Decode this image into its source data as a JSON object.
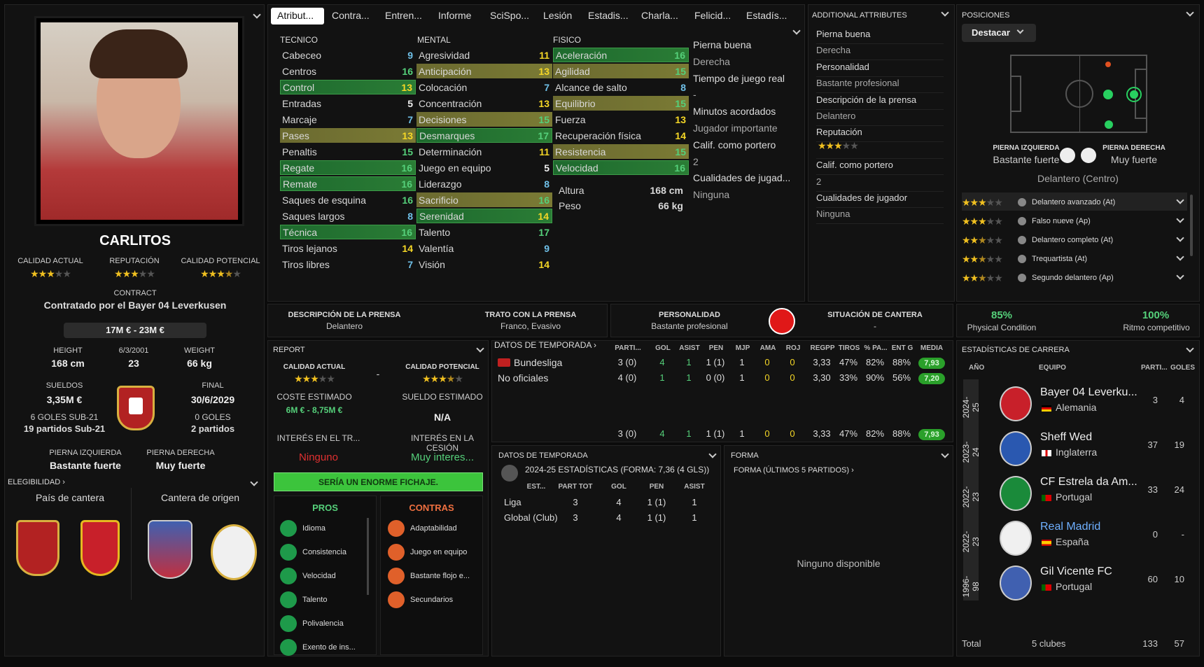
{
  "player": {
    "name": "CARLITOS",
    "current_ability_label": "CALIDAD ACTUAL",
    "reputation_label": "REPUTACIÓN",
    "potential_label": "CALIDAD POTENCIAL",
    "current_stars": 3,
    "reputation_stars": 3,
    "potential_stars": 3.5,
    "contract_label": "CONTRACT",
    "contract_text": "Contratado por el Bayer 04 Leverkusen",
    "value_range": "17M € - 23M €",
    "height_label": "HEIGHT",
    "height": "168 cm",
    "dob": "6/3/2001",
    "age": "23",
    "weight_label": "WEIGHT",
    "weight": "66 kg",
    "wages_label": "SUELDOS",
    "wages": "3,35M €",
    "end_label": "FINAL",
    "end_date": "30/6/2029",
    "u21_goals": "6 GOLES SUB-21",
    "u21_apps": "19 partidos Sub-21",
    "goals": "0 GOLES",
    "apps": "2 partidos",
    "left_foot_label": "PIERNA IZQUIERDA",
    "left_foot": "Bastante fuerte",
    "right_foot_label": "PIERNA DERECHA",
    "right_foot": "Muy fuerte",
    "eligibility_label": "ELEGIBILIDAD",
    "country_label": "País de cantera",
    "origin_label": "Cantera de origen"
  },
  "tabs": [
    "Atribut...",
    "Contra...",
    "Entren...",
    "Informe",
    "SciSpo...",
    "Lesión",
    "Estadis...",
    "Charla...",
    "Felicid...",
    "Estadís..."
  ],
  "attributes": {
    "technical_label": "TECNICO",
    "mental_label": "MENTAL",
    "physical_label": "FISICO",
    "technical": [
      {
        "n": "Cabeceo",
        "v": "9"
      },
      {
        "n": "Centros",
        "v": "16"
      },
      {
        "n": "Control",
        "v": "13"
      },
      {
        "n": "Entradas",
        "v": "5"
      },
      {
        "n": "Marcaje",
        "v": "7"
      },
      {
        "n": "Pases",
        "v": "13"
      },
      {
        "n": "Penaltis",
        "v": "15"
      },
      {
        "n": "Regate",
        "v": "16"
      },
      {
        "n": "Remate",
        "v": "16"
      },
      {
        "n": "Saques de esquina",
        "v": "16"
      },
      {
        "n": "Saques largos",
        "v": "8"
      },
      {
        "n": "Técnica",
        "v": "16"
      },
      {
        "n": "Tiros lejanos",
        "v": "14"
      },
      {
        "n": "Tiros libres",
        "v": "7"
      }
    ],
    "mental": [
      {
        "n": "Agresividad",
        "v": "11"
      },
      {
        "n": "Anticipación",
        "v": "13"
      },
      {
        "n": "Colocación",
        "v": "7"
      },
      {
        "n": "Concentración",
        "v": "13"
      },
      {
        "n": "Decisiones",
        "v": "15"
      },
      {
        "n": "Desmarques",
        "v": "17"
      },
      {
        "n": "Determinación",
        "v": "11"
      },
      {
        "n": "Juego en equipo",
        "v": "5"
      },
      {
        "n": "Liderazgo",
        "v": "8"
      },
      {
        "n": "Sacrificio",
        "v": "16"
      },
      {
        "n": "Serenidad",
        "v": "14"
      },
      {
        "n": "Talento",
        "v": "17"
      },
      {
        "n": "Valentía",
        "v": "9"
      },
      {
        "n": "Visión",
        "v": "14"
      }
    ],
    "physical": [
      {
        "n": "Aceleración",
        "v": "16"
      },
      {
        "n": "Agilidad",
        "v": "15"
      },
      {
        "n": "Alcance de salto",
        "v": "8"
      },
      {
        "n": "Equilibrio",
        "v": "15"
      },
      {
        "n": "Fuerza",
        "v": "13"
      },
      {
        "n": "Recuperación física",
        "v": "14"
      },
      {
        "n": "Resistencia",
        "v": "15"
      },
      {
        "n": "Velocidad",
        "v": "16"
      }
    ],
    "altura_label": "Altura",
    "altura": "168 cm",
    "peso_label": "Peso",
    "peso": "66 kg",
    "side": [
      "Pierna buena",
      "Derecha",
      "Tiempo de juego real",
      "-",
      "Minutos acordados",
      "Jugador importante",
      "Calif. como portero",
      "2",
      "Cualidades de jugad...",
      "Ninguna"
    ]
  },
  "additional": {
    "title": "ADDITIONAL ATTRIBUTES",
    "items": [
      "Pierna buena",
      "Derecha",
      "Personalidad",
      "Bastante profesional",
      "Descripción de la prensa",
      "Delantero",
      "Reputación",
      "",
      "Calif. como portero",
      "2",
      "Cualidades de jugador",
      "Ninguna"
    ]
  },
  "positions": {
    "title": "POSICIONES",
    "dropdown": "Destacar",
    "left_label": "PIERNA IZQUIERDA",
    "left_val": "Bastante fuerte",
    "right_label": "PIERNA DERECHA",
    "right_val": "Muy fuerte",
    "position": "Delantero (Centro)",
    "roles": [
      {
        "stars": 3,
        "n": "Delantero avanzado (At)"
      },
      {
        "stars": 3,
        "n": "Falso nueve (Ap)"
      },
      {
        "stars": 2.5,
        "n": "Delantero completo (At)"
      },
      {
        "stars": 2.5,
        "n": "Trequartista (At)"
      },
      {
        "stars": 2.5,
        "n": "Segundo delantero (Ap)"
      }
    ]
  },
  "press": {
    "desc_label": "DESCRIPCIÓN DE LA PRENSA",
    "desc": "Delantero",
    "trato_label": "TRATO CON LA PRENSA",
    "trato": "Franco, Evasivo",
    "pers_label": "PERSONALIDAD",
    "pers": "Bastante profesional",
    "cantera_label": "SITUACIÓN DE CANTERA",
    "cantera": "-"
  },
  "condition": {
    "phys": "85%",
    "phys_label": "Physical Condition",
    "ritmo": "100%",
    "ritmo_label": "Ritmo competitivo"
  },
  "report": {
    "title": "REPORT",
    "ca_label": "CALIDAD ACTUAL",
    "pa_label": "CALIDAD POTENCIAL",
    "dash": "-",
    "cost_label": "COSTE ESTIMADO",
    "cost": "6M € - 8,75M €",
    "wage_label": "SUELDO ESTIMADO",
    "wage": "N/A",
    "int_tr_label": "INTERÉS EN EL TR...",
    "int_tr": "Ninguno",
    "int_loan_label": "INTERÉS EN LA CESIÓN",
    "int_loan": "Muy interes...",
    "verdict": "SERÍA UN ENORME FICHAJE.",
    "pros_label": "PROS",
    "contras_label": "CONTRAS",
    "pros": [
      "Idioma",
      "Consistencia",
      "Velocidad",
      "Talento",
      "Polivalencia",
      "Exento de ins..."
    ],
    "contras": [
      "Adaptabilidad",
      "Juego en equipo",
      "Bastante flojo e...",
      "Secundarios"
    ]
  },
  "season": {
    "title": "DATOS DE TEMPORADA",
    "headers": [
      "PARTI...",
      "GOL",
      "ASIST",
      "PEN",
      "MJP",
      "AMA",
      "ROJ",
      "REGPP",
      "TIROS",
      "% PA...",
      "ENT G",
      "MEDIA"
    ],
    "rows": [
      {
        "comp": "Bundesliga",
        "vals": [
          "3 (0)",
          "4",
          "1",
          "1 (1)",
          "1",
          "0",
          "0",
          "3,33",
          "47%",
          "82%",
          "88%"
        ],
        "media": "7,93"
      },
      {
        "comp": "No oficiales",
        "vals": [
          "4 (0)",
          "1",
          "1",
          "0 (0)",
          "1",
          "0",
          "0",
          "3,30",
          "33%",
          "90%",
          "56%"
        ],
        "media": "7,20"
      },
      {
        "comp": "",
        "vals": [
          "3 (0)",
          "4",
          "1",
          "1 (1)",
          "1",
          "0",
          "0",
          "3,33",
          "47%",
          "82%",
          "88%"
        ],
        "media": "7,93"
      }
    ]
  },
  "season2": {
    "title": "DATOS DE TEMPORADA",
    "subtitle": "2024-25 ESTADÍSTICAS (FORMA: 7,36 (4 GLS))",
    "headers": [
      "EST...",
      "PART TOT",
      "GOL",
      "PEN",
      "ASIST"
    ],
    "rows": [
      [
        "Liga",
        "3",
        "4",
        "1 (1)",
        "1"
      ],
      [
        "Global (Club)",
        "3",
        "4",
        "1 (1)",
        "1"
      ]
    ]
  },
  "forma": {
    "title": "FORMA",
    "sub": "FORMA (ÚLTIMOS 5 PARTIDOS)",
    "none": "Ninguno disponible"
  },
  "career": {
    "title": "ESTADÍSTICAS DE CARRERA",
    "h_year": "AÑO",
    "h_team": "EQUIPO",
    "h_apps": "PARTI...",
    "h_goals": "GOLES",
    "rows": [
      {
        "year": "2024-25",
        "team": "Bayer 04 Leverku...",
        "country": "Alemania",
        "apps": "3",
        "goals": "4"
      },
      {
        "year": "2023-24",
        "team": "Sheff Wed",
        "country": "Inglaterra",
        "apps": "37",
        "goals": "19"
      },
      {
        "year": "2022-23",
        "team": "CF Estrela da Am...",
        "country": "Portugal",
        "apps": "33",
        "goals": "24"
      },
      {
        "year": "2022-23",
        "team": "Real Madrid",
        "country": "España",
        "apps": "0",
        "goals": "-"
      },
      {
        "year": "1996-98",
        "team": "Gil Vicente FC",
        "country": "Portugal",
        "apps": "60",
        "goals": "10"
      }
    ],
    "total_label": "Total",
    "total_clubs": "5 clubes",
    "total_apps": "133",
    "total_goals": "57"
  }
}
